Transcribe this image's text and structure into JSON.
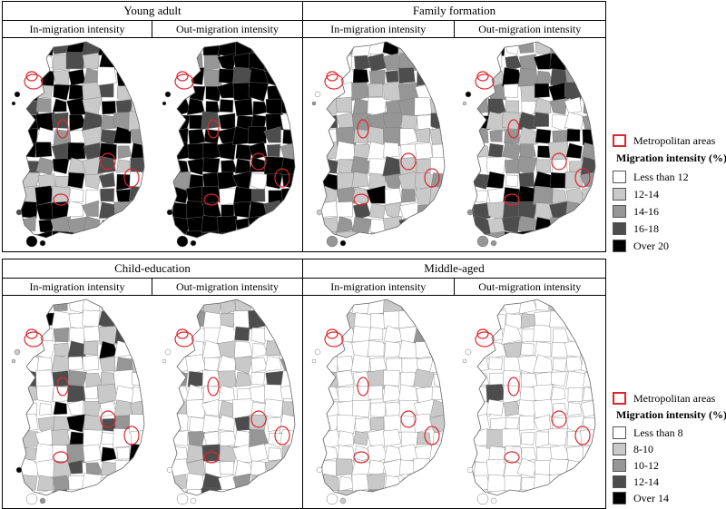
{
  "panels": [
    {
      "title": "Young adult",
      "sub_left": "In-migration  intensity",
      "sub_right": "Out-migration  intensity"
    },
    {
      "title": "Family formation",
      "sub_left": "In-migration  intensity",
      "sub_right": "Out-migration  intensity"
    },
    {
      "title": "Child-education",
      "sub_left": "In-migration  intensity",
      "sub_right": "Out-migration  intensity"
    },
    {
      "title": "Middle-aged",
      "sub_left": "In-migration  intensity",
      "sub_right": "Out-migration  intensity"
    }
  ],
  "legend_top": {
    "metro_label": "Metropolitan areas",
    "title": "Migration intensity (%)",
    "items": [
      {
        "label": "Less than 12",
        "color": "#ffffff"
      },
      {
        "label": "12-14",
        "color": "#c9c9c9"
      },
      {
        "label": "14-16",
        "color": "#969696"
      },
      {
        "label": "16-18",
        "color": "#4d4d4d"
      },
      {
        "label": "Over 20",
        "color": "#000000"
      }
    ]
  },
  "legend_bottom": {
    "metro_label": "Metropolitan areas",
    "title": "Migration intensity (%)",
    "items": [
      {
        "label": "Less than 8",
        "color": "#ffffff"
      },
      {
        "label": "8-10",
        "color": "#c9c9c9"
      },
      {
        "label": "10-12",
        "color": "#969696"
      },
      {
        "label": "12-14",
        "color": "#4d4d4d"
      },
      {
        "label": "Over 14",
        "color": "#000000"
      }
    ]
  },
  "maps": [
    {
      "panel": 0,
      "side": "left",
      "shade": "mixed-dark"
    },
    {
      "panel": 0,
      "side": "right",
      "shade": "mostly-black"
    },
    {
      "panel": 1,
      "side": "left",
      "shade": "mixed-light"
    },
    {
      "panel": 1,
      "side": "right",
      "shade": "mixed-mid"
    },
    {
      "panel": 2,
      "side": "left",
      "shade": "light-with-darks"
    },
    {
      "panel": 2,
      "side": "right",
      "shade": "light"
    },
    {
      "panel": 3,
      "side": "left",
      "shade": "very-light"
    },
    {
      "panel": 3,
      "side": "right",
      "shade": "near-white"
    }
  ],
  "colors": {
    "metro_outline": "#e0252d",
    "border": "#000000"
  }
}
